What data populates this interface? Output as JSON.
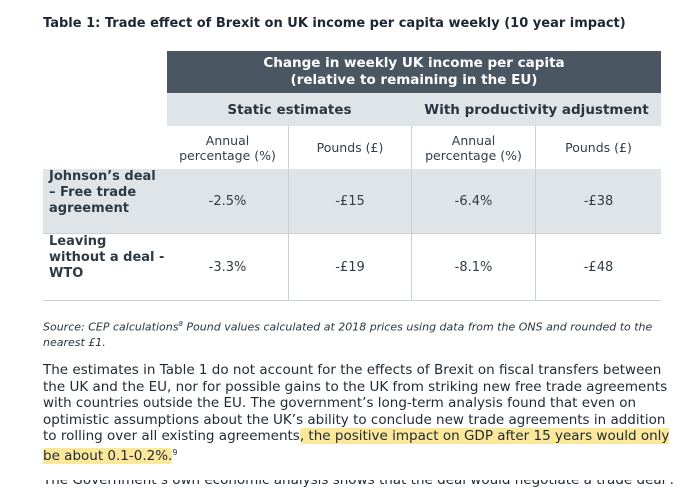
{
  "table": {
    "title": "Table 1: Trade effect of Brexit on UK income per capita weekly (10 year impact)",
    "header_main_line1": "Change in weekly UK income per capita",
    "header_main_line2": "(relative to remaining in the EU)",
    "group_headers": [
      "Static estimates",
      "With productivity adjustment"
    ],
    "sub_headers": [
      {
        "line1": "Annual",
        "line2": "percentage (%)"
      },
      {
        "line1": "Pounds (£)",
        "line2": ""
      },
      {
        "line1": "Annual",
        "line2": "percentage (%)"
      },
      {
        "line1": "Pounds (£)",
        "line2": ""
      }
    ],
    "rows": [
      {
        "label_lines": [
          "Johnson’s deal",
          "– Free trade",
          "agreement"
        ],
        "values": [
          "-2.5%",
          "-£15",
          "-6.4%",
          "-£38"
        ]
      },
      {
        "label_lines": [
          "Leaving",
          "without a deal -",
          "WTO"
        ],
        "values": [
          "-3.3%",
          "-£19",
          "-8.1%",
          "-£48"
        ]
      }
    ]
  },
  "source": {
    "text_before_sup": "Source: CEP calculations",
    "sup": "8",
    "text_after_sup": " Pound values calculated at 2018 prices using data from the ONS and rounded to the nearest £1."
  },
  "paragraph": {
    "text": "The estimates in Table 1 do not account for the effects of Brexit on fiscal transfers between the UK and the EU, nor for possible gains to the UK from striking new free trade agreements with countries outside the EU. The government’s long-term analysis found that even on optimistic assumptions about the UK’s ability to conclude new trade agreements in addition to rolling over all existing agreements",
    "highlight": ", the positive impact on GDP after 15 years would only be about 0.1-0.2%.",
    "footnote": "9"
  },
  "next_line_partial": "The Government’s own economic analysis shows that the deal would negotiate a trade deal ..."
}
